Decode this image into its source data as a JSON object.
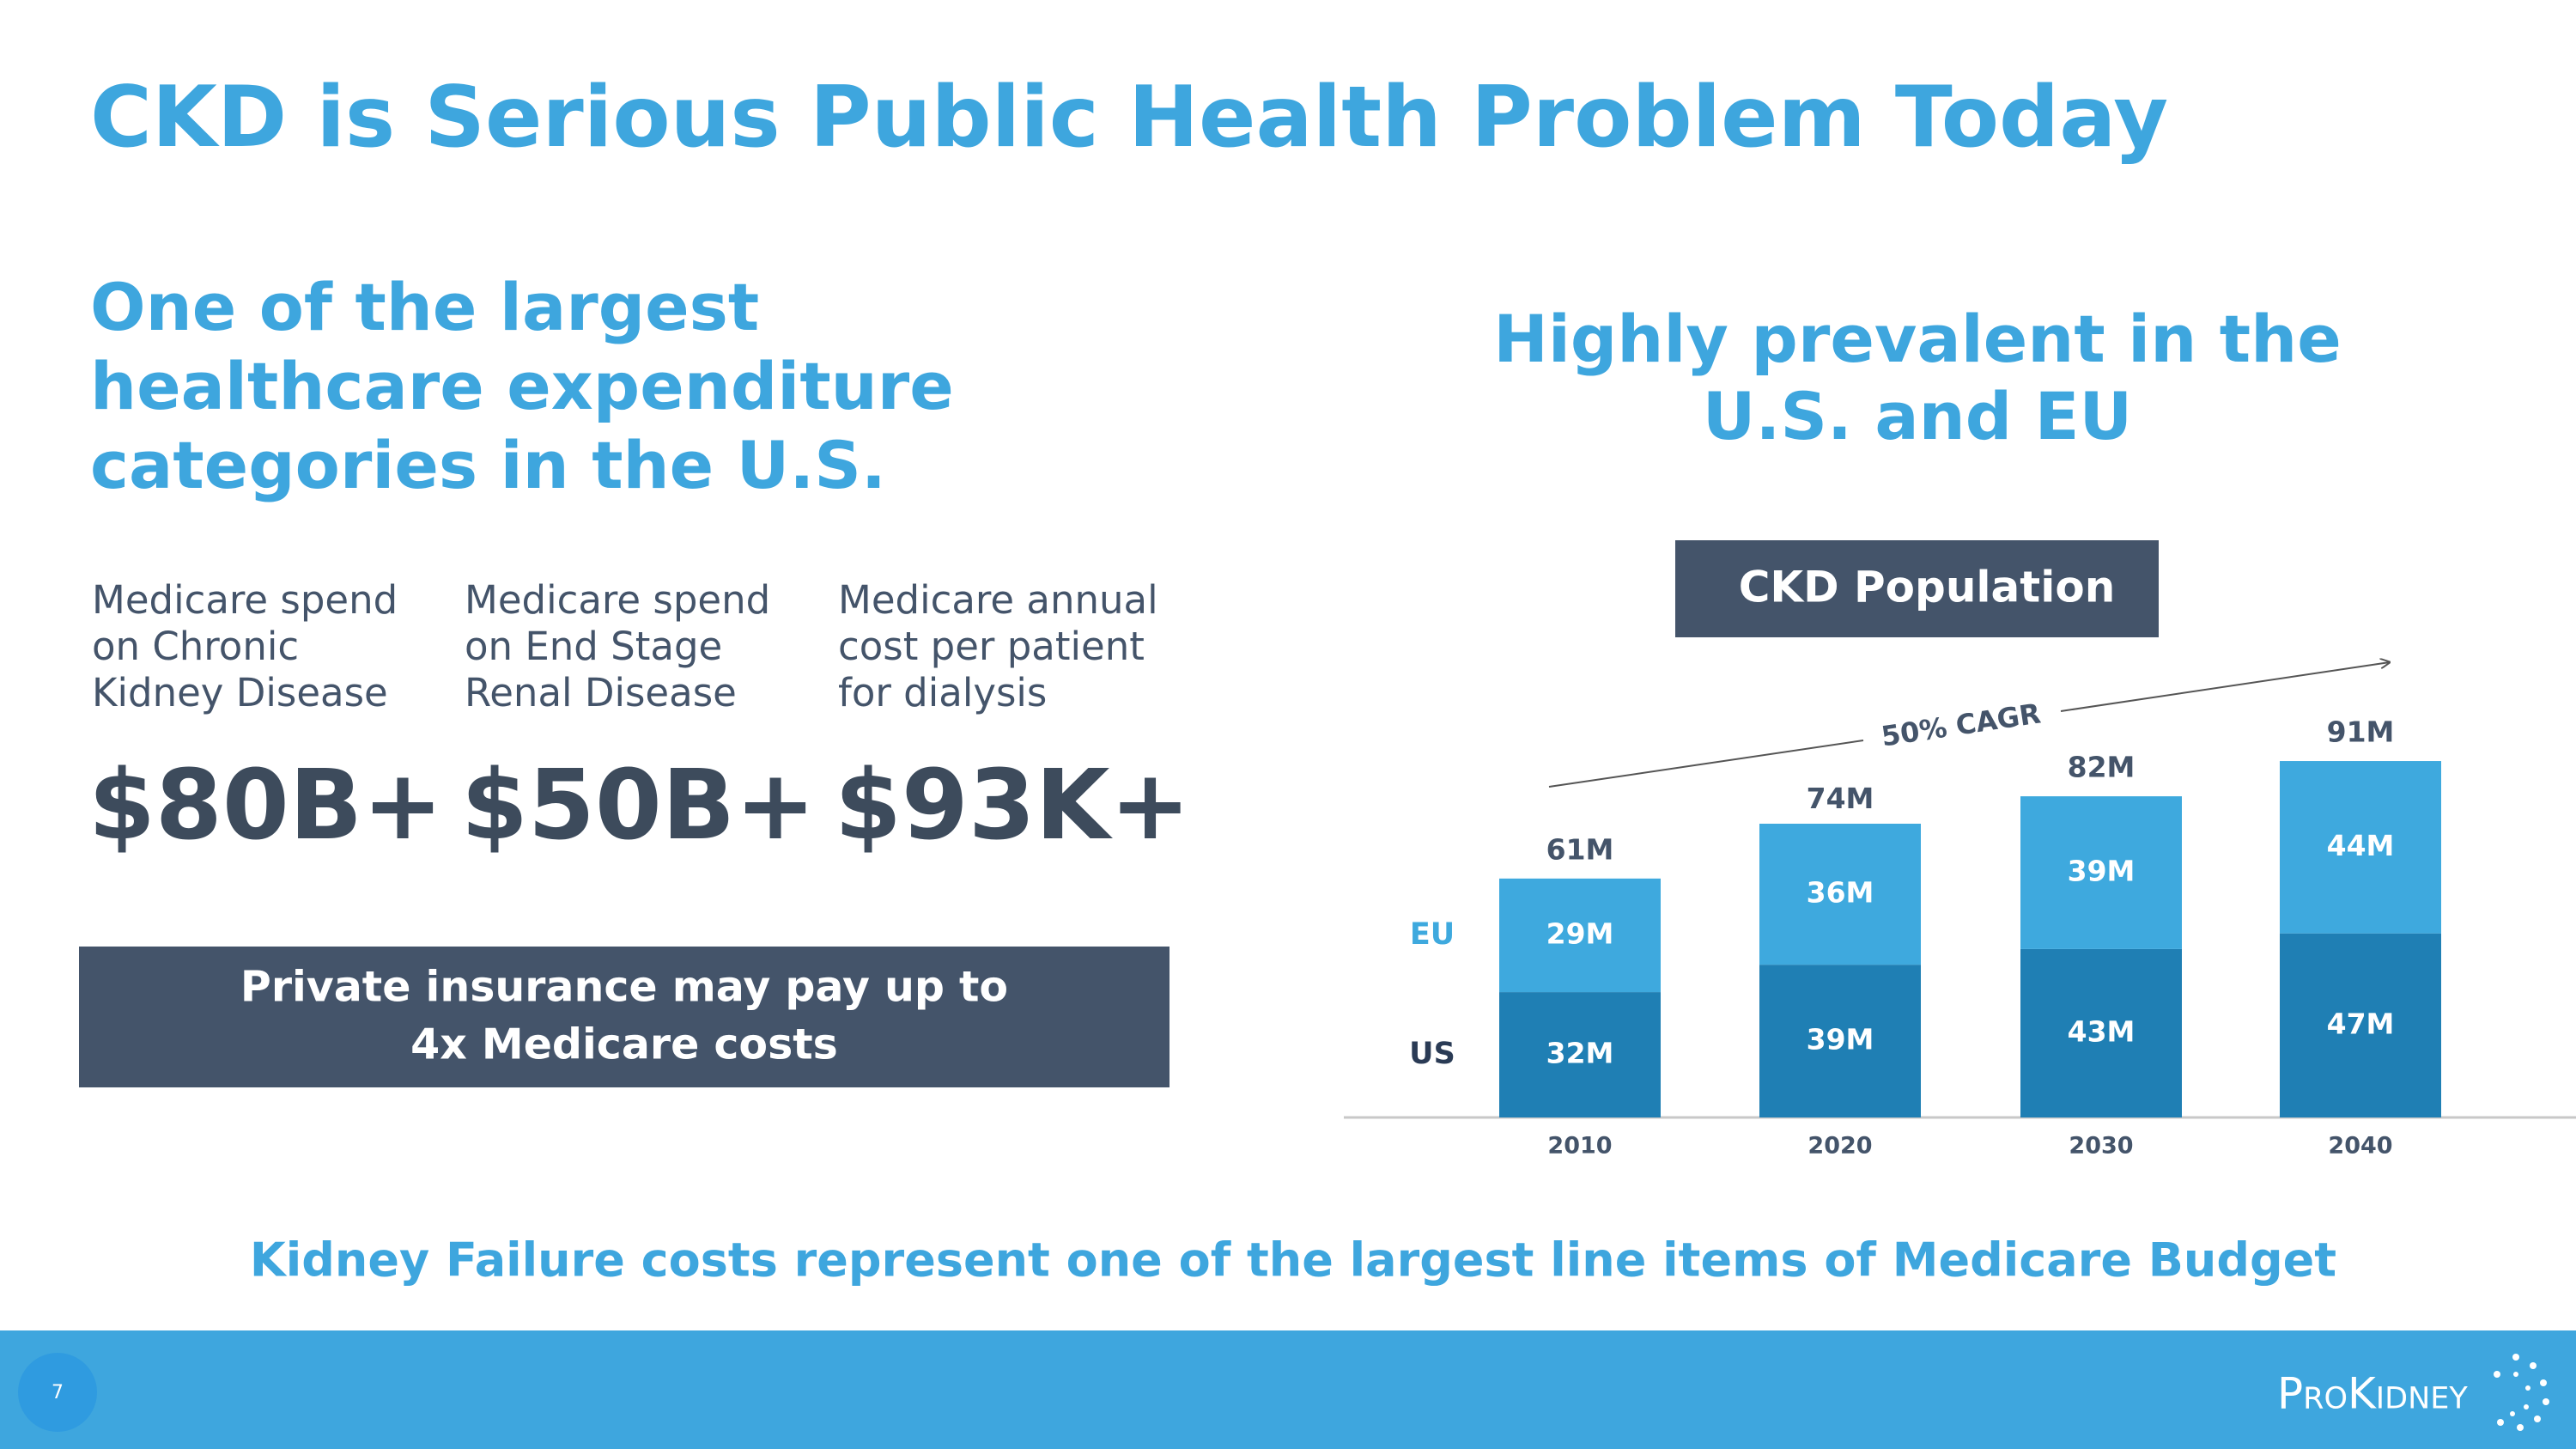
{
  "title": "CKD is Serious Public Health Problem Today",
  "left": {
    "heading": [
      "One of the largest",
      "healthcare expenditure",
      "categories in the U.S."
    ],
    "stats": [
      {
        "label": [
          "Medicare spend",
          "on Chronic",
          "Kidney Disease"
        ],
        "value": "$80B+"
      },
      {
        "label": [
          "Medicare spend",
          "on End Stage",
          "Renal Disease"
        ],
        "value": "$50B+"
      },
      {
        "label": [
          "Medicare annual",
          "cost per patient",
          "for dialysis"
        ],
        "value": "$93K+"
      }
    ],
    "callout": [
      "Private insurance may pay up to",
      "4x Medicare costs"
    ]
  },
  "right": {
    "heading": [
      "Highly prevalent in the",
      "U.S. and EU"
    ]
  },
  "chart_data": {
    "type": "stacked_bar",
    "title": "CKD Population",
    "categories": [
      "2010",
      "2020",
      "2030",
      "2040"
    ],
    "series": [
      {
        "name": "US",
        "color": "#1f7fb4",
        "values": [
          32,
          39,
          43,
          47
        ],
        "value_labels": [
          "32M",
          "39M",
          "43M",
          "47M"
        ]
      },
      {
        "name": "EU",
        "color": "#3ea9de",
        "values": [
          29,
          36,
          39,
          44
        ],
        "value_labels": [
          "29M",
          "36M",
          "39M",
          "44M"
        ]
      }
    ],
    "totals": {
      "values": [
        61,
        74,
        82,
        91
      ],
      "value_labels": [
        "61M",
        "74M",
        "82M",
        "91M"
      ]
    },
    "annotation": "50% CAGR",
    "ylim": [
      0,
      100
    ]
  },
  "footer": {
    "message": "Kidney Failure costs represent one of the largest line items of Medicare Budget",
    "page_number": "7",
    "logo": "ProKidney"
  }
}
